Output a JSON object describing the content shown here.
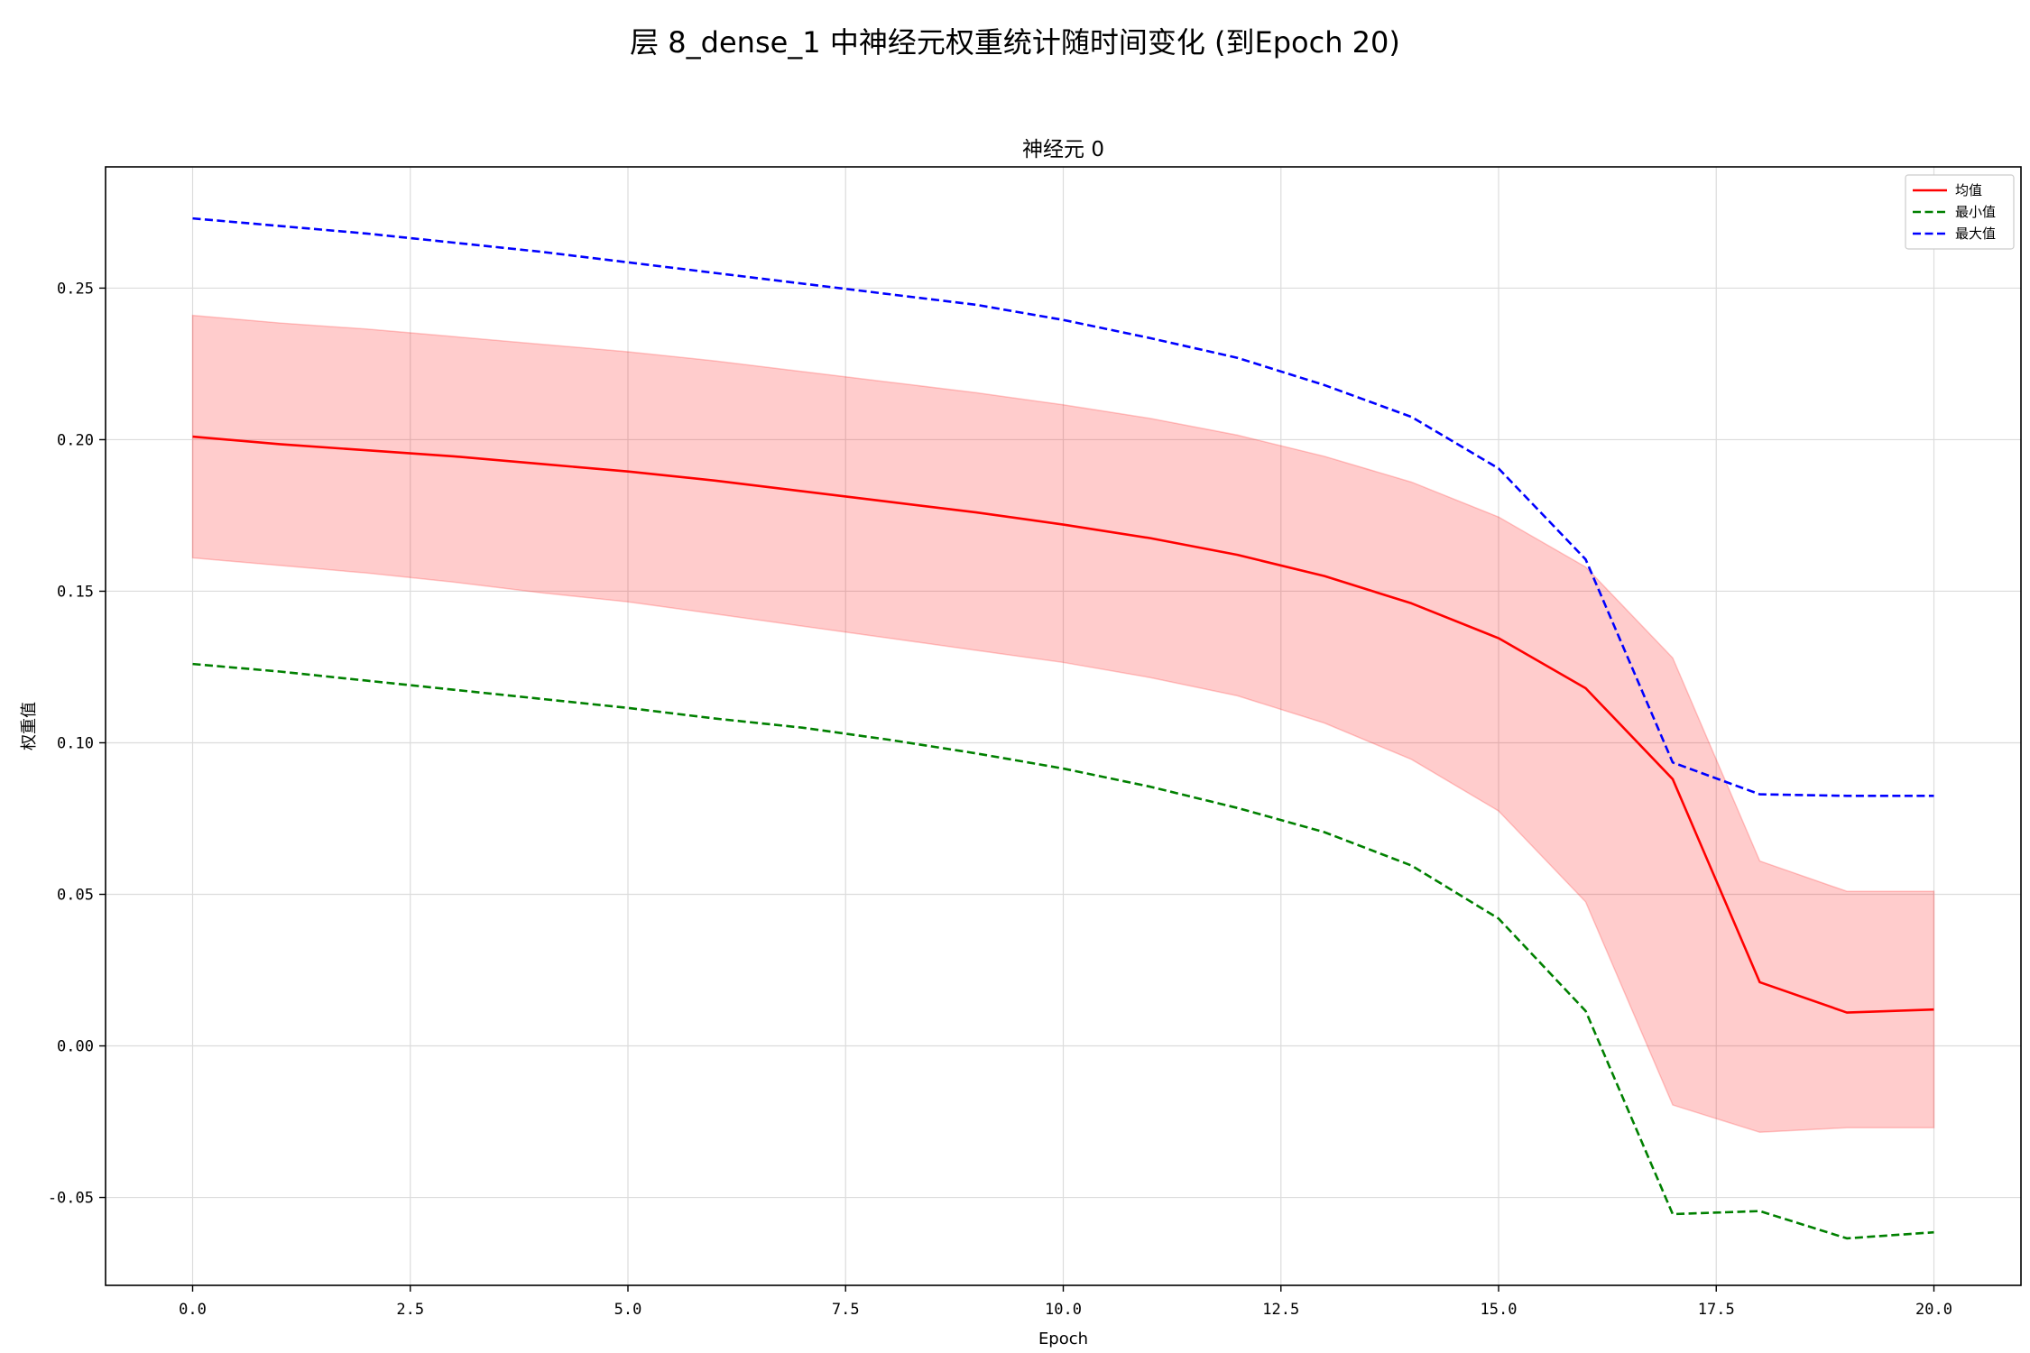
{
  "figure": {
    "suptitle": "层 8_dense_1 中神经元权重统计随时间变化 (到Epoch 20)"
  },
  "chart_data": {
    "type": "line",
    "title": "神经元 0",
    "xlabel": "Epoch",
    "ylabel": "权重值",
    "xlim": [
      -1,
      21
    ],
    "ylim": [
      -0.079,
      0.29
    ],
    "xticks": [
      0.0,
      2.5,
      5.0,
      7.5,
      10.0,
      12.5,
      15.0,
      17.5,
      20.0
    ],
    "xtick_labels": [
      "0.0",
      "2.5",
      "5.0",
      "7.5",
      "10.0",
      "12.5",
      "15.0",
      "17.5",
      "20.0"
    ],
    "yticks": [
      -0.05,
      0.0,
      0.05,
      0.1,
      0.15,
      0.2,
      0.25
    ],
    "ytick_labels": [
      "-0.05",
      "0.00",
      "0.05",
      "0.10",
      "0.15",
      "0.20",
      "0.25"
    ],
    "grid": true,
    "legend_position": "top-right",
    "x": [
      0,
      1,
      2,
      3,
      4,
      5,
      6,
      7,
      8,
      9,
      10,
      11,
      12,
      13,
      14,
      15,
      16,
      17,
      18,
      19,
      20
    ],
    "series": [
      {
        "name": "均值",
        "color": "#ff0000",
        "style": "solid",
        "values": [
          0.201,
          0.1985,
          0.1965,
          0.1945,
          0.192,
          0.1895,
          0.1865,
          0.183,
          0.1795,
          0.176,
          0.172,
          0.1675,
          0.162,
          0.155,
          0.146,
          0.1345,
          0.118,
          0.088,
          0.021,
          0.011,
          0.012
        ]
      },
      {
        "name": "最小值",
        "color": "#008000",
        "style": "dashed",
        "values": [
          0.126,
          0.1235,
          0.1205,
          0.1175,
          0.1145,
          0.1115,
          0.108,
          0.105,
          0.101,
          0.0965,
          0.0915,
          0.0855,
          0.0785,
          0.0705,
          0.0595,
          0.042,
          0.0115,
          -0.0555,
          -0.0545,
          -0.0635,
          -0.0615
        ]
      },
      {
        "name": "最大值",
        "color": "#0000ff",
        "style": "dashed",
        "values": [
          0.273,
          0.2705,
          0.268,
          0.265,
          0.262,
          0.2585,
          0.255,
          0.2515,
          0.248,
          0.2445,
          0.2395,
          0.2335,
          0.227,
          0.218,
          0.2075,
          0.1905,
          0.1605,
          0.0935,
          0.083,
          0.0825,
          0.0825
        ]
      }
    ],
    "band": {
      "color": "#ff0000",
      "opacity": 0.2,
      "lower": [
        0.161,
        0.1585,
        0.156,
        0.153,
        0.1495,
        0.1465,
        0.1425,
        0.1385,
        0.1345,
        0.1305,
        0.1265,
        0.1215,
        0.1155,
        0.1065,
        0.0945,
        0.0775,
        0.0475,
        -0.0195,
        -0.0285,
        -0.027,
        -0.027
      ],
      "upper": [
        0.241,
        0.2385,
        0.2365,
        0.234,
        0.2315,
        0.229,
        0.226,
        0.2225,
        0.219,
        0.2155,
        0.2115,
        0.207,
        0.2015,
        0.1945,
        0.186,
        0.1745,
        0.158,
        0.128,
        0.061,
        0.051,
        0.051
      ]
    }
  }
}
